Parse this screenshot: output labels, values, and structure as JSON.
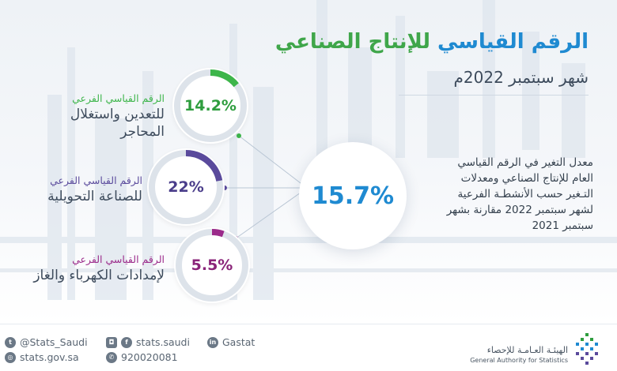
{
  "header": {
    "title_part1": "الرقم القياسي",
    "title_part2": "للإنتاج الصناعي",
    "subtitle": "شهر سبتمبر  2022م"
  },
  "description": "معدل التغير في الرقم القياسي العام للإنتاج الصناعي ومعدلات التـغير حسب الأنشطـة الفرعية لشهر سبتمبر 2022 مقارنة بشهر سبتمبر 2021",
  "overall": {
    "value": "15.7%"
  },
  "indicators": [
    {
      "value_text": "14.2%",
      "fraction": 0.142,
      "color": "#3db54a",
      "label_small": "الرقم القياسي الفرعي",
      "label_big_1": "للتعدين واستغلال",
      "label_big_2": "المحاجر"
    },
    {
      "value_text": "22%",
      "fraction": 0.22,
      "color": "#5a4a9c",
      "label_small": "الرقم القياسي الفرعي",
      "label_big_1": "للصناعة التحويلية",
      "label_big_2": ""
    },
    {
      "value_text": "5.5%",
      "fraction": 0.055,
      "color": "#9b2a8a",
      "label_small": "الرقم القياسي الفرعي",
      "label_big_1": "لإمدادات الكهرباء والغاز",
      "label_big_2": ""
    }
  ],
  "footer": {
    "twitter": "@Stats_Saudi",
    "social": "stats.saudi",
    "linkedin": "Gastat",
    "website": "stats.gov.sa",
    "phone": "920020081",
    "org_ar": "الهيئـة العـامـة للإحصاء",
    "org_en": "General Authority for Statistics"
  },
  "icons": [
    "twitter-icon",
    "instagram-icon",
    "facebook-icon",
    "linkedin-icon",
    "globe-icon",
    "phone-icon"
  ],
  "colors": {
    "title_blue": "#1f8ad1",
    "title_green": "#3fa64a",
    "ring_track": "#dde3ea"
  }
}
